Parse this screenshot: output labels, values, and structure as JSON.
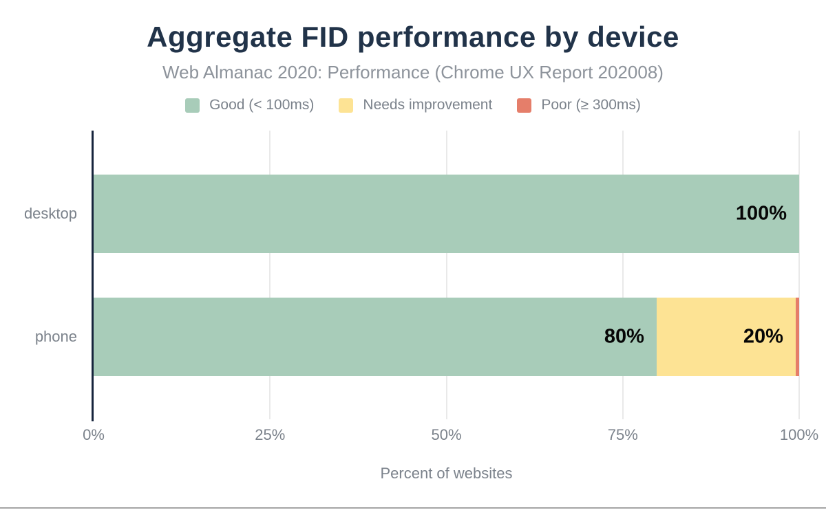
{
  "chart_data": {
    "type": "bar",
    "orientation": "horizontal",
    "stacked": true,
    "title": "Aggregate FID performance by device",
    "subtitle": "Web Almanac 2020: Performance (Chrome UX Report 202008)",
    "xlabel": "Percent of websites",
    "categories": [
      "desktop",
      "phone"
    ],
    "series": [
      {
        "name": "Good (< 100ms)",
        "color": "#a8ccb9",
        "values": [
          100,
          79.8
        ],
        "labels": [
          "100%",
          "80%"
        ]
      },
      {
        "name": "Needs improvement",
        "color": "#fde394",
        "values": [
          0,
          19.7
        ],
        "labels": [
          "",
          "20%"
        ]
      },
      {
        "name": "Poor (≥ 300ms)",
        "color": "#e57e6a",
        "values": [
          0,
          0.5
        ],
        "labels": [
          "",
          ""
        ]
      }
    ],
    "x_ticks": [
      "0%",
      "25%",
      "50%",
      "75%",
      "100%"
    ],
    "xlim": [
      0,
      100
    ],
    "grid": "vertical",
    "legend_position": "top",
    "axis_color": "#16243c",
    "gridline_color": "#e9e9e9"
  }
}
